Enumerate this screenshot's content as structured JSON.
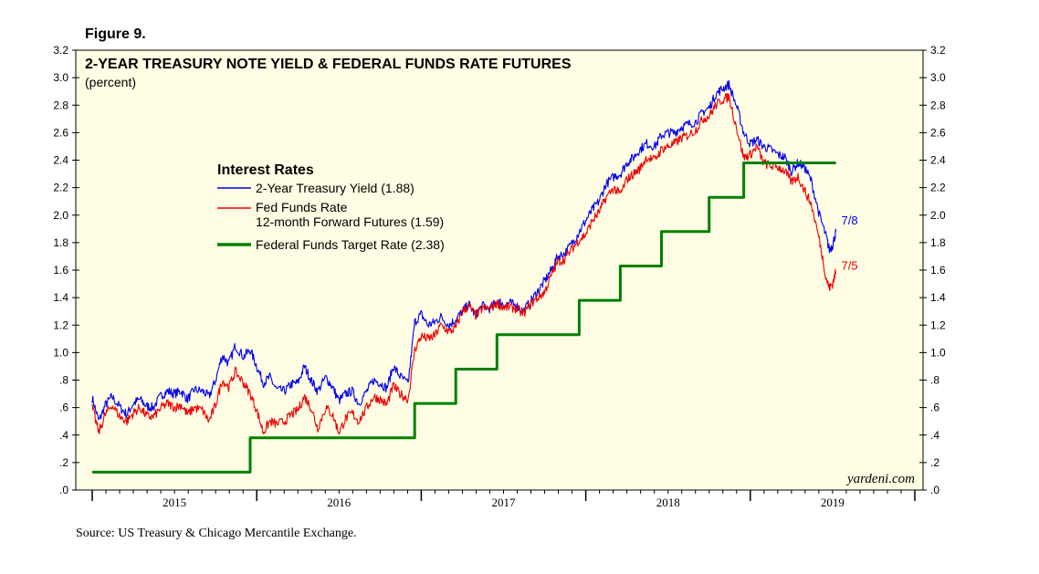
{
  "figure_label": "Figure 9.",
  "source": "Source: US Treasury & Chicago Mercantile Exchange.",
  "watermark": "yardeni.com",
  "colors": {
    "plot_bg": "#fffde4",
    "treasury": "#0000ee",
    "futures": "#ee0000",
    "target": "#008000",
    "axis": "#000000"
  },
  "chart_data": {
    "type": "line",
    "title": "2-YEAR TREASURY NOTE YIELD & FEDERAL FUNDS RATE FUTURES",
    "subtitle": "(percent)",
    "ylim": [
      0,
      3.2
    ],
    "xlim": [
      2014.9,
      2020.05
    ],
    "y_ticks": [
      {
        "value": 0.0,
        "label": ".0"
      },
      {
        "value": 0.2,
        "label": ".2"
      },
      {
        "value": 0.4,
        "label": ".4"
      },
      {
        "value": 0.6,
        "label": ".6"
      },
      {
        "value": 0.8,
        "label": ".8"
      },
      {
        "value": 1.0,
        "label": "1.0"
      },
      {
        "value": 1.2,
        "label": "1.2"
      },
      {
        "value": 1.4,
        "label": "1.4"
      },
      {
        "value": 1.6,
        "label": "1.6"
      },
      {
        "value": 1.8,
        "label": "1.8"
      },
      {
        "value": 2.0,
        "label": "2.0"
      },
      {
        "value": 2.2,
        "label": "2.2"
      },
      {
        "value": 2.4,
        "label": "2.4"
      },
      {
        "value": 2.6,
        "label": "2.6"
      },
      {
        "value": 2.8,
        "label": "2.8"
      },
      {
        "value": 3.0,
        "label": "3.0"
      },
      {
        "value": 3.2,
        "label": "3.2"
      }
    ],
    "year_boundaries": [
      2015.0,
      2016.0,
      2017.0,
      2018.0,
      2019.0,
      2020.0
    ],
    "x_labels": [
      {
        "value": 2015.5,
        "label": "2015"
      },
      {
        "value": 2016.5,
        "label": "2016"
      },
      {
        "value": 2017.5,
        "label": "2017"
      },
      {
        "value": 2018.5,
        "label": "2018"
      },
      {
        "value": 2019.5,
        "label": "2019"
      }
    ],
    "legend": {
      "title": "Interest Rates",
      "entries": [
        {
          "text": "2-Year Treasury Yield (1.88)",
          "series": 0
        },
        {
          "text": "Fed Funds Rate",
          "series": 1
        },
        {
          "text": "12-month Forward Futures (1.59)",
          "series": 1,
          "continuation": true
        },
        {
          "text": "Federal Funds Target Rate (2.38)",
          "series": 2
        }
      ]
    },
    "series": [
      {
        "name": "2-Year Treasury Yield",
        "color": "#0000ee",
        "end_label": "7/8",
        "x": [
          2015.0,
          2015.04,
          2015.08,
          2015.12,
          2015.17,
          2015.21,
          2015.25,
          2015.29,
          2015.33,
          2015.37,
          2015.42,
          2015.46,
          2015.5,
          2015.54,
          2015.58,
          2015.62,
          2015.67,
          2015.71,
          2015.75,
          2015.79,
          2015.83,
          2015.87,
          2015.92,
          2015.96,
          2016.0,
          2016.04,
          2016.08,
          2016.12,
          2016.17,
          2016.21,
          2016.25,
          2016.29,
          2016.33,
          2016.37,
          2016.42,
          2016.46,
          2016.5,
          2016.54,
          2016.58,
          2016.62,
          2016.67,
          2016.71,
          2016.75,
          2016.79,
          2016.83,
          2016.87,
          2016.92,
          2016.96,
          2017.0,
          2017.04,
          2017.08,
          2017.12,
          2017.17,
          2017.21,
          2017.25,
          2017.29,
          2017.33,
          2017.37,
          2017.42,
          2017.46,
          2017.5,
          2017.54,
          2017.58,
          2017.62,
          2017.67,
          2017.71,
          2017.75,
          2017.79,
          2017.83,
          2017.87,
          2017.92,
          2017.96,
          2018.0,
          2018.04,
          2018.08,
          2018.12,
          2018.17,
          2018.21,
          2018.25,
          2018.29,
          2018.33,
          2018.37,
          2018.42,
          2018.46,
          2018.5,
          2018.54,
          2018.58,
          2018.62,
          2018.67,
          2018.71,
          2018.75,
          2018.79,
          2018.83,
          2018.87,
          2018.92,
          2018.96,
          2019.0,
          2019.04,
          2019.08,
          2019.12,
          2019.17,
          2019.21,
          2019.25,
          2019.29,
          2019.33,
          2019.37,
          2019.42,
          2019.46,
          2019.48,
          2019.5,
          2019.52
        ],
        "y": [
          0.67,
          0.5,
          0.62,
          0.68,
          0.6,
          0.55,
          0.63,
          0.66,
          0.61,
          0.6,
          0.69,
          0.72,
          0.7,
          0.72,
          0.66,
          0.73,
          0.72,
          0.68,
          0.8,
          0.98,
          0.92,
          1.05,
          0.97,
          1.02,
          0.9,
          0.78,
          0.82,
          0.73,
          0.72,
          0.77,
          0.78,
          0.9,
          0.8,
          0.72,
          0.82,
          0.75,
          0.65,
          0.7,
          0.72,
          0.63,
          0.72,
          0.8,
          0.78,
          0.74,
          0.9,
          0.83,
          0.77,
          1.22,
          1.28,
          1.2,
          1.22,
          1.26,
          1.2,
          1.24,
          1.3,
          1.35,
          1.27,
          1.34,
          1.32,
          1.38,
          1.35,
          1.36,
          1.34,
          1.3,
          1.38,
          1.45,
          1.52,
          1.6,
          1.7,
          1.72,
          1.8,
          1.88,
          1.96,
          2.04,
          2.1,
          2.22,
          2.28,
          2.3,
          2.38,
          2.42,
          2.48,
          2.52,
          2.5,
          2.58,
          2.6,
          2.6,
          2.64,
          2.66,
          2.68,
          2.75,
          2.78,
          2.88,
          2.92,
          2.95,
          2.78,
          2.6,
          2.52,
          2.55,
          2.5,
          2.48,
          2.44,
          2.42,
          2.32,
          2.38,
          2.35,
          2.25,
          2.0,
          1.85,
          1.75,
          1.78,
          1.88
        ]
      },
      {
        "name": "Fed Funds Rate 12-month Forward Futures",
        "color": "#ee0000",
        "end_label": "7/5",
        "x": [
          2015.0,
          2015.04,
          2015.08,
          2015.12,
          2015.17,
          2015.21,
          2015.25,
          2015.29,
          2015.33,
          2015.37,
          2015.42,
          2015.46,
          2015.5,
          2015.54,
          2015.58,
          2015.62,
          2015.67,
          2015.71,
          2015.75,
          2015.79,
          2015.83,
          2015.87,
          2015.92,
          2015.96,
          2016.0,
          2016.04,
          2016.08,
          2016.12,
          2016.17,
          2016.21,
          2016.25,
          2016.29,
          2016.33,
          2016.37,
          2016.42,
          2016.46,
          2016.5,
          2016.54,
          2016.58,
          2016.62,
          2016.67,
          2016.71,
          2016.75,
          2016.79,
          2016.83,
          2016.87,
          2016.92,
          2016.96,
          2017.0,
          2017.04,
          2017.08,
          2017.12,
          2017.17,
          2017.21,
          2017.25,
          2017.29,
          2017.33,
          2017.37,
          2017.42,
          2017.46,
          2017.5,
          2017.54,
          2017.58,
          2017.62,
          2017.67,
          2017.71,
          2017.75,
          2017.79,
          2017.83,
          2017.87,
          2017.92,
          2017.96,
          2018.0,
          2018.04,
          2018.08,
          2018.12,
          2018.17,
          2018.21,
          2018.25,
          2018.29,
          2018.33,
          2018.37,
          2018.42,
          2018.46,
          2018.5,
          2018.54,
          2018.58,
          2018.62,
          2018.67,
          2018.71,
          2018.75,
          2018.79,
          2018.83,
          2018.87,
          2018.92,
          2018.96,
          2019.0,
          2019.04,
          2019.08,
          2019.12,
          2019.17,
          2019.21,
          2019.25,
          2019.29,
          2019.33,
          2019.37,
          2019.42,
          2019.46,
          2019.48,
          2019.5,
          2019.52
        ],
        "y": [
          0.6,
          0.42,
          0.55,
          0.62,
          0.53,
          0.5,
          0.56,
          0.6,
          0.54,
          0.53,
          0.6,
          0.63,
          0.6,
          0.62,
          0.55,
          0.6,
          0.58,
          0.5,
          0.62,
          0.8,
          0.75,
          0.86,
          0.78,
          0.7,
          0.58,
          0.42,
          0.5,
          0.48,
          0.5,
          0.55,
          0.58,
          0.68,
          0.6,
          0.45,
          0.6,
          0.55,
          0.42,
          0.52,
          0.56,
          0.5,
          0.6,
          0.68,
          0.66,
          0.62,
          0.76,
          0.7,
          0.66,
          1.02,
          1.12,
          1.1,
          1.12,
          1.2,
          1.15,
          1.18,
          1.3,
          1.34,
          1.27,
          1.32,
          1.32,
          1.36,
          1.33,
          1.33,
          1.32,
          1.28,
          1.36,
          1.4,
          1.44,
          1.56,
          1.66,
          1.68,
          1.76,
          1.82,
          1.86,
          1.96,
          2.02,
          2.12,
          2.2,
          2.15,
          2.26,
          2.3,
          2.34,
          2.42,
          2.4,
          2.48,
          2.5,
          2.52,
          2.56,
          2.58,
          2.62,
          2.7,
          2.72,
          2.8,
          2.84,
          2.86,
          2.62,
          2.42,
          2.44,
          2.5,
          2.38,
          2.36,
          2.35,
          2.32,
          2.24,
          2.28,
          2.18,
          2.08,
          1.82,
          1.55,
          1.47,
          1.5,
          1.59
        ]
      },
      {
        "name": "Federal Funds Target Rate",
        "color": "#008000",
        "step": true,
        "x": [
          2015.0,
          2015.96,
          2016.96,
          2017.21,
          2017.46,
          2017.96,
          2018.21,
          2018.46,
          2018.75,
          2018.96,
          2019.52
        ],
        "y": [
          0.13,
          0.38,
          0.63,
          0.88,
          1.13,
          1.38,
          1.63,
          1.88,
          2.13,
          2.38,
          2.38
        ]
      }
    ]
  }
}
